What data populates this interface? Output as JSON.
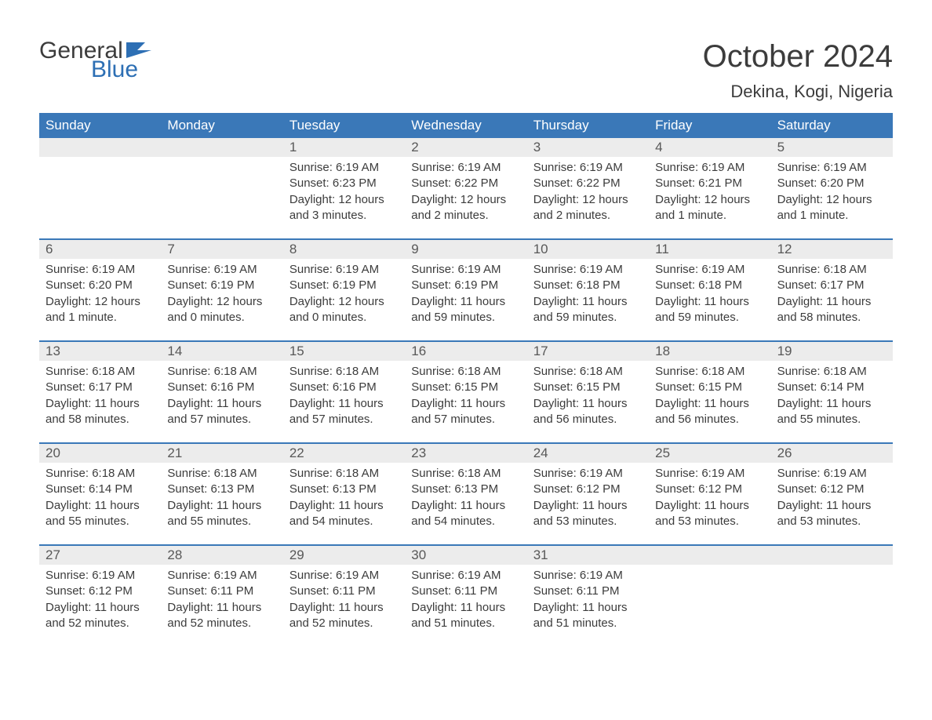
{
  "brand": {
    "word1": "General",
    "word2": "Blue",
    "flag_color": "#2d6fb4"
  },
  "title": "October 2024",
  "location": "Dekina, Kogi, Nigeria",
  "colors": {
    "header_bg": "#3a78b8",
    "header_text": "#ffffff",
    "daynum_bg": "#ececec",
    "text": "#3c3c3c",
    "rule": "#3a78b8",
    "accent": "#2d6fb4"
  },
  "weekdays": [
    "Sunday",
    "Monday",
    "Tuesday",
    "Wednesday",
    "Thursday",
    "Friday",
    "Saturday"
  ],
  "weeks": [
    [
      {
        "n": "",
        "sr": "",
        "ss": "",
        "dl1": "",
        "dl2": ""
      },
      {
        "n": "",
        "sr": "",
        "ss": "",
        "dl1": "",
        "dl2": ""
      },
      {
        "n": "1",
        "sr": "Sunrise: 6:19 AM",
        "ss": "Sunset: 6:23 PM",
        "dl1": "Daylight: 12 hours",
        "dl2": "and 3 minutes."
      },
      {
        "n": "2",
        "sr": "Sunrise: 6:19 AM",
        "ss": "Sunset: 6:22 PM",
        "dl1": "Daylight: 12 hours",
        "dl2": "and 2 minutes."
      },
      {
        "n": "3",
        "sr": "Sunrise: 6:19 AM",
        "ss": "Sunset: 6:22 PM",
        "dl1": "Daylight: 12 hours",
        "dl2": "and 2 minutes."
      },
      {
        "n": "4",
        "sr": "Sunrise: 6:19 AM",
        "ss": "Sunset: 6:21 PM",
        "dl1": "Daylight: 12 hours",
        "dl2": "and 1 minute."
      },
      {
        "n": "5",
        "sr": "Sunrise: 6:19 AM",
        "ss": "Sunset: 6:20 PM",
        "dl1": "Daylight: 12 hours",
        "dl2": "and 1 minute."
      }
    ],
    [
      {
        "n": "6",
        "sr": "Sunrise: 6:19 AM",
        "ss": "Sunset: 6:20 PM",
        "dl1": "Daylight: 12 hours",
        "dl2": "and 1 minute."
      },
      {
        "n": "7",
        "sr": "Sunrise: 6:19 AM",
        "ss": "Sunset: 6:19 PM",
        "dl1": "Daylight: 12 hours",
        "dl2": "and 0 minutes."
      },
      {
        "n": "8",
        "sr": "Sunrise: 6:19 AM",
        "ss": "Sunset: 6:19 PM",
        "dl1": "Daylight: 12 hours",
        "dl2": "and 0 minutes."
      },
      {
        "n": "9",
        "sr": "Sunrise: 6:19 AM",
        "ss": "Sunset: 6:19 PM",
        "dl1": "Daylight: 11 hours",
        "dl2": "and 59 minutes."
      },
      {
        "n": "10",
        "sr": "Sunrise: 6:19 AM",
        "ss": "Sunset: 6:18 PM",
        "dl1": "Daylight: 11 hours",
        "dl2": "and 59 minutes."
      },
      {
        "n": "11",
        "sr": "Sunrise: 6:19 AM",
        "ss": "Sunset: 6:18 PM",
        "dl1": "Daylight: 11 hours",
        "dl2": "and 59 minutes."
      },
      {
        "n": "12",
        "sr": "Sunrise: 6:18 AM",
        "ss": "Sunset: 6:17 PM",
        "dl1": "Daylight: 11 hours",
        "dl2": "and 58 minutes."
      }
    ],
    [
      {
        "n": "13",
        "sr": "Sunrise: 6:18 AM",
        "ss": "Sunset: 6:17 PM",
        "dl1": "Daylight: 11 hours",
        "dl2": "and 58 minutes."
      },
      {
        "n": "14",
        "sr": "Sunrise: 6:18 AM",
        "ss": "Sunset: 6:16 PM",
        "dl1": "Daylight: 11 hours",
        "dl2": "and 57 minutes."
      },
      {
        "n": "15",
        "sr": "Sunrise: 6:18 AM",
        "ss": "Sunset: 6:16 PM",
        "dl1": "Daylight: 11 hours",
        "dl2": "and 57 minutes."
      },
      {
        "n": "16",
        "sr": "Sunrise: 6:18 AM",
        "ss": "Sunset: 6:15 PM",
        "dl1": "Daylight: 11 hours",
        "dl2": "and 57 minutes."
      },
      {
        "n": "17",
        "sr": "Sunrise: 6:18 AM",
        "ss": "Sunset: 6:15 PM",
        "dl1": "Daylight: 11 hours",
        "dl2": "and 56 minutes."
      },
      {
        "n": "18",
        "sr": "Sunrise: 6:18 AM",
        "ss": "Sunset: 6:15 PM",
        "dl1": "Daylight: 11 hours",
        "dl2": "and 56 minutes."
      },
      {
        "n": "19",
        "sr": "Sunrise: 6:18 AM",
        "ss": "Sunset: 6:14 PM",
        "dl1": "Daylight: 11 hours",
        "dl2": "and 55 minutes."
      }
    ],
    [
      {
        "n": "20",
        "sr": "Sunrise: 6:18 AM",
        "ss": "Sunset: 6:14 PM",
        "dl1": "Daylight: 11 hours",
        "dl2": "and 55 minutes."
      },
      {
        "n": "21",
        "sr": "Sunrise: 6:18 AM",
        "ss": "Sunset: 6:13 PM",
        "dl1": "Daylight: 11 hours",
        "dl2": "and 55 minutes."
      },
      {
        "n": "22",
        "sr": "Sunrise: 6:18 AM",
        "ss": "Sunset: 6:13 PM",
        "dl1": "Daylight: 11 hours",
        "dl2": "and 54 minutes."
      },
      {
        "n": "23",
        "sr": "Sunrise: 6:18 AM",
        "ss": "Sunset: 6:13 PM",
        "dl1": "Daylight: 11 hours",
        "dl2": "and 54 minutes."
      },
      {
        "n": "24",
        "sr": "Sunrise: 6:19 AM",
        "ss": "Sunset: 6:12 PM",
        "dl1": "Daylight: 11 hours",
        "dl2": "and 53 minutes."
      },
      {
        "n": "25",
        "sr": "Sunrise: 6:19 AM",
        "ss": "Sunset: 6:12 PM",
        "dl1": "Daylight: 11 hours",
        "dl2": "and 53 minutes."
      },
      {
        "n": "26",
        "sr": "Sunrise: 6:19 AM",
        "ss": "Sunset: 6:12 PM",
        "dl1": "Daylight: 11 hours",
        "dl2": "and 53 minutes."
      }
    ],
    [
      {
        "n": "27",
        "sr": "Sunrise: 6:19 AM",
        "ss": "Sunset: 6:12 PM",
        "dl1": "Daylight: 11 hours",
        "dl2": "and 52 minutes."
      },
      {
        "n": "28",
        "sr": "Sunrise: 6:19 AM",
        "ss": "Sunset: 6:11 PM",
        "dl1": "Daylight: 11 hours",
        "dl2": "and 52 minutes."
      },
      {
        "n": "29",
        "sr": "Sunrise: 6:19 AM",
        "ss": "Sunset: 6:11 PM",
        "dl1": "Daylight: 11 hours",
        "dl2": "and 52 minutes."
      },
      {
        "n": "30",
        "sr": "Sunrise: 6:19 AM",
        "ss": "Sunset: 6:11 PM",
        "dl1": "Daylight: 11 hours",
        "dl2": "and 51 minutes."
      },
      {
        "n": "31",
        "sr": "Sunrise: 6:19 AM",
        "ss": "Sunset: 6:11 PM",
        "dl1": "Daylight: 11 hours",
        "dl2": "and 51 minutes."
      },
      {
        "n": "",
        "sr": "",
        "ss": "",
        "dl1": "",
        "dl2": ""
      },
      {
        "n": "",
        "sr": "",
        "ss": "",
        "dl1": "",
        "dl2": ""
      }
    ]
  ]
}
